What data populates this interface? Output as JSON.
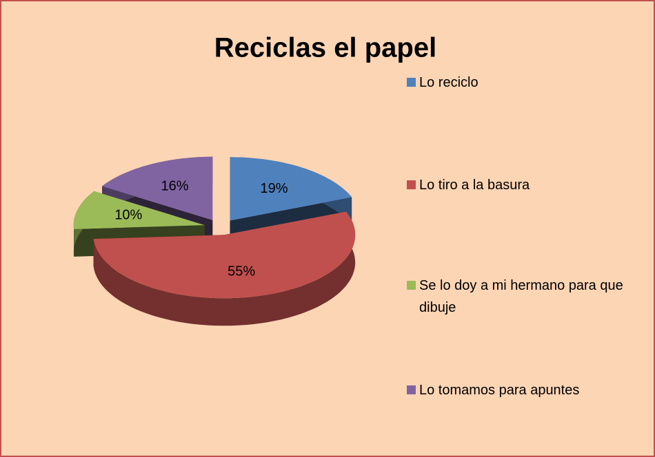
{
  "chart_data": {
    "type": "pie",
    "title": "Reciclas el papel",
    "categories": [
      "Lo reciclo",
      "Lo tiro a la basura",
      "Se lo doy a mi hermano para que dibuje",
      "Lo tomamos para apuntes"
    ],
    "values": [
      19,
      55,
      10,
      16
    ],
    "value_labels": [
      "19%",
      "55%",
      "10%",
      "16%"
    ],
    "colors": [
      "#4f81bd",
      "#c0504d",
      "#9bbb59",
      "#8064a2"
    ],
    "legend": "right"
  }
}
